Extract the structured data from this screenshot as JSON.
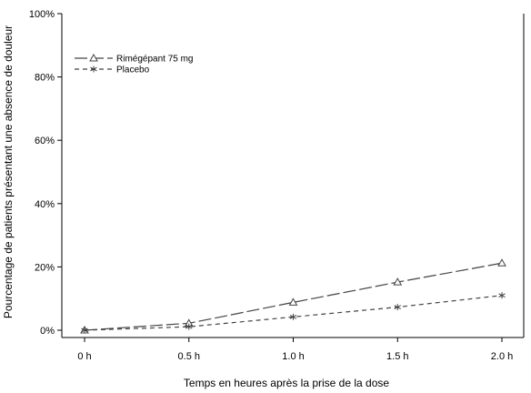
{
  "chart_data": {
    "type": "line",
    "title": "",
    "xlabel": "Temps en heures après la prise de la dose",
    "ylabel": "Pourcentage de patients présentant une absence de douleur",
    "categories": [
      "0 h",
      "0.5 h",
      "1.0 h",
      "1.5 h",
      "2.0 h"
    ],
    "x": [
      0,
      0.5,
      1.0,
      1.5,
      2.0
    ],
    "ylim": [
      0,
      100
    ],
    "yticks": [
      "0%",
      "20%",
      "40%",
      "60%",
      "80%",
      "100%"
    ],
    "ytick_values": [
      0,
      20,
      40,
      60,
      80,
      100
    ],
    "grid": false,
    "legend_position": "top-left",
    "series": [
      {
        "name": "Rimégépant 75 mg",
        "marker": "triangle",
        "line_style": "long-dash",
        "values": [
          0,
          2.2,
          8.8,
          15.2,
          21.2
        ]
      },
      {
        "name": "Placebo",
        "marker": "asterisk",
        "line_style": "short-dash",
        "values": [
          0,
          1.1,
          4.2,
          7.3,
          11.0
        ]
      }
    ],
    "colors": {
      "line": "#444444",
      "axis": "#000000"
    }
  }
}
